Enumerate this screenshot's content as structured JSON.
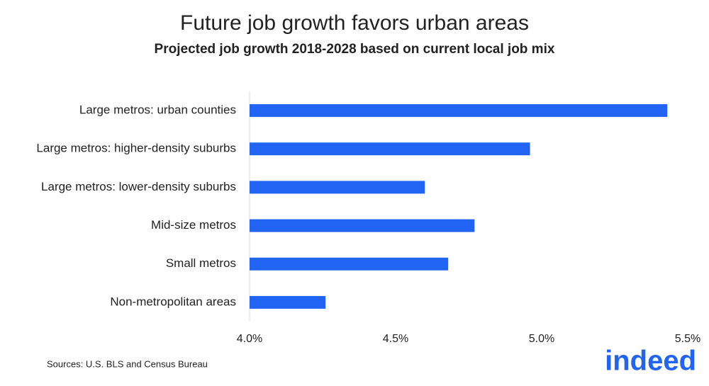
{
  "chart_data": {
    "type": "bar",
    "orientation": "horizontal",
    "title": "Future job growth favors urban areas",
    "subtitle": "Projected job growth 2018-2028 based on current local job mix",
    "categories": [
      "Large metros: urban counties",
      "Large metros: higher-density suburbs",
      "Large metros: lower-density suburbs",
      "Mid-size metros",
      "Small metros",
      "Non-metropolitan areas"
    ],
    "values": [
      5.43,
      4.96,
      4.6,
      4.77,
      4.68,
      4.26
    ],
    "color": "#2164f3",
    "xlim": [
      4,
      5.5
    ],
    "xticks": [
      {
        "value": 4,
        "label": "4.0%"
      },
      {
        "value": 4.5,
        "label": "4.5%"
      },
      {
        "value": 5,
        "label": "5.0%"
      },
      {
        "value": 5.5,
        "label": "5.5%"
      }
    ],
    "grid": false
  },
  "footer": {
    "source": "Sources: U.S. BLS and Census Bureau",
    "logo": "indeed"
  }
}
